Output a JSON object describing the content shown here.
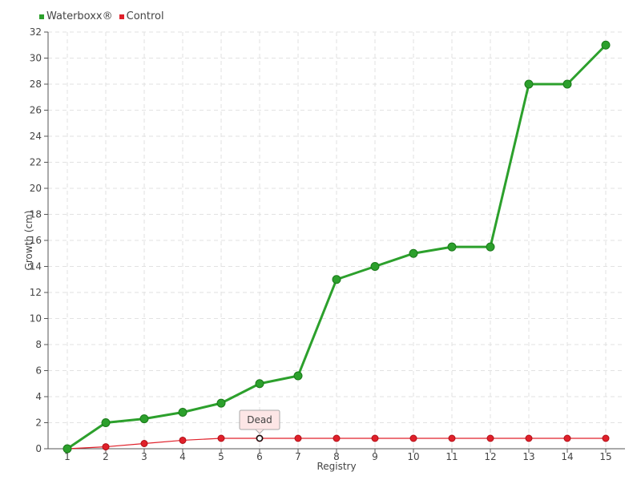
{
  "chart_data": {
    "type": "line",
    "title": "",
    "xlabel": "Registry",
    "ylabel": "Growth (cm)",
    "categories": [
      "1",
      "2",
      "3",
      "4",
      "5",
      "6",
      "7",
      "8",
      "9",
      "10",
      "11",
      "12",
      "13",
      "14",
      "15"
    ],
    "ylim": [
      0,
      32
    ],
    "ytick_step": 2,
    "grid": true,
    "legend_position": "top-left",
    "series": [
      {
        "name": "Waterboxx®",
        "color": "#2ca02c",
        "values": [
          0,
          2,
          2.3,
          2.8,
          3.5,
          5,
          5.6,
          13,
          14,
          15,
          15.5,
          15.5,
          28,
          28,
          31
        ]
      },
      {
        "name": "Control",
        "color": "#e0202a",
        "values": [
          0,
          0.15,
          0.4,
          0.65,
          0.8,
          0.8,
          0.8,
          0.8,
          0.8,
          0.8,
          0.8,
          0.8,
          0.8,
          0.8,
          0.8
        ]
      }
    ],
    "annotations": [
      {
        "text": "Dead",
        "series": 1,
        "category": "6"
      }
    ]
  }
}
